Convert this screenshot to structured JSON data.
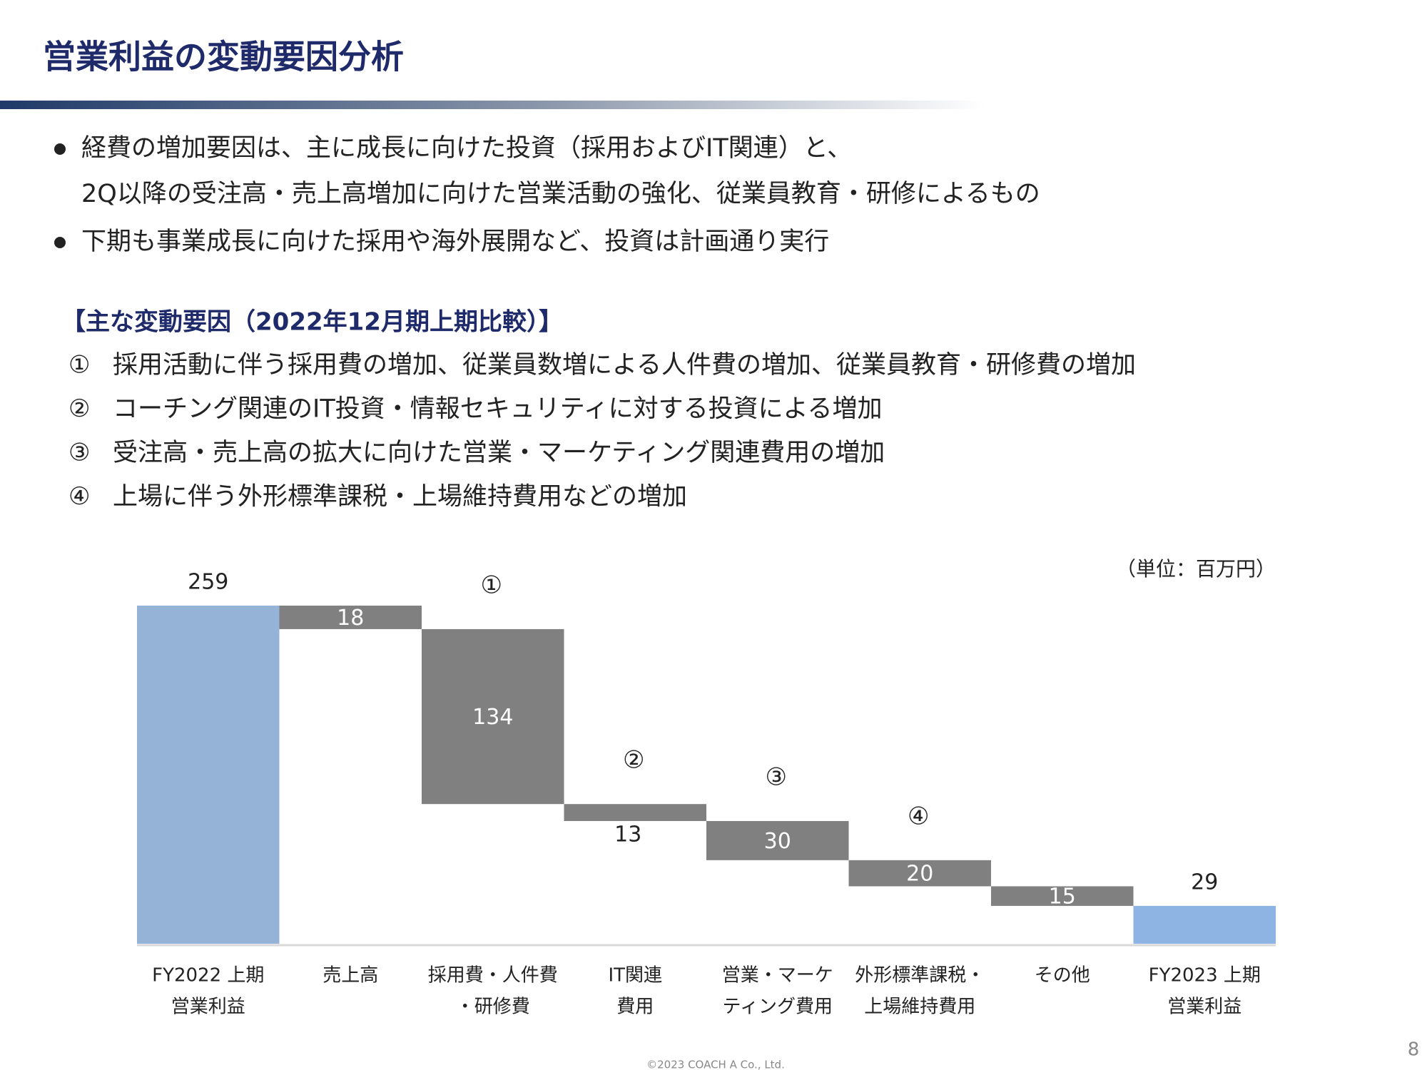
{
  "title": "営業利益の変動要因分析",
  "bullets": [
    [
      "経費の増加要因は、主に成長に向けた投資（採用およびIT関連）と、",
      "2Q以降の受注高・売上高増加に向けた営業活動の強化、従業員教育・研修によるもの"
    ],
    [
      "下期も事業成長に向けた採用や海外展開など、投資は計画通り実行"
    ]
  ],
  "section_title": "【主な変動要因（2022年12月期上期比較）】",
  "items": [
    {
      "num": "①",
      "text": "採用活動に伴う採用費の増加、従業員数増による人件費の増加、従業員教育・研修費の増加"
    },
    {
      "num": "②",
      "text": "コーチング関連のIT投資・情報セキュリティに対する投資による増加"
    },
    {
      "num": "③",
      "text": "受注高・売上高の拡大に向けた営業・マーケティング関連費用の増加"
    },
    {
      "num": "④",
      "text": "上場に伴う外形標準課税・上場維持費用などの増加"
    }
  ],
  "page_number": "8",
  "copyright": "©2023  COACH A Co., Ltd.",
  "chart_data": {
    "type": "waterfall",
    "unit_label": "（単位：百万円）",
    "categories": [
      [
        "FY2022 上期",
        "営業利益"
      ],
      [
        "売上高"
      ],
      [
        "採用費・人件費",
        "・研修費"
      ],
      [
        "IT関連",
        "費用"
      ],
      [
        "営業・マーケ",
        "ティング費用"
      ],
      [
        "外形標準課税・",
        "上場維持費用"
      ],
      [
        "その他"
      ],
      [
        "FY2023 上期",
        "営業利益"
      ]
    ],
    "values": [
      259,
      18,
      134,
      13,
      30,
      20,
      15,
      29
    ],
    "measures": [
      "absolute",
      "decrease",
      "decrease",
      "decrease",
      "decrease",
      "decrease",
      "decrease",
      "absolute"
    ],
    "colors": [
      "#95b3d7",
      "#808080",
      "#808080",
      "#808080",
      "#808080",
      "#808080",
      "#808080",
      "#8eb4e3"
    ],
    "annotations": [
      {
        "text": "①",
        "category": 2
      },
      {
        "text": "②",
        "category": 3
      },
      {
        "text": "③",
        "category": 4
      },
      {
        "text": "④",
        "category": 5
      }
    ],
    "ylim": [
      0,
      259
    ]
  }
}
